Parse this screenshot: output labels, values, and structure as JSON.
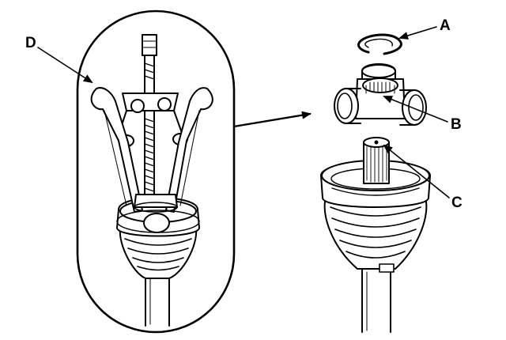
{
  "labels": {
    "a": "A",
    "b": "B",
    "c": "C",
    "d": "D"
  },
  "colors": {
    "line": "#000000",
    "background": "#ffffff",
    "shade": "#cfcfcf"
  }
}
